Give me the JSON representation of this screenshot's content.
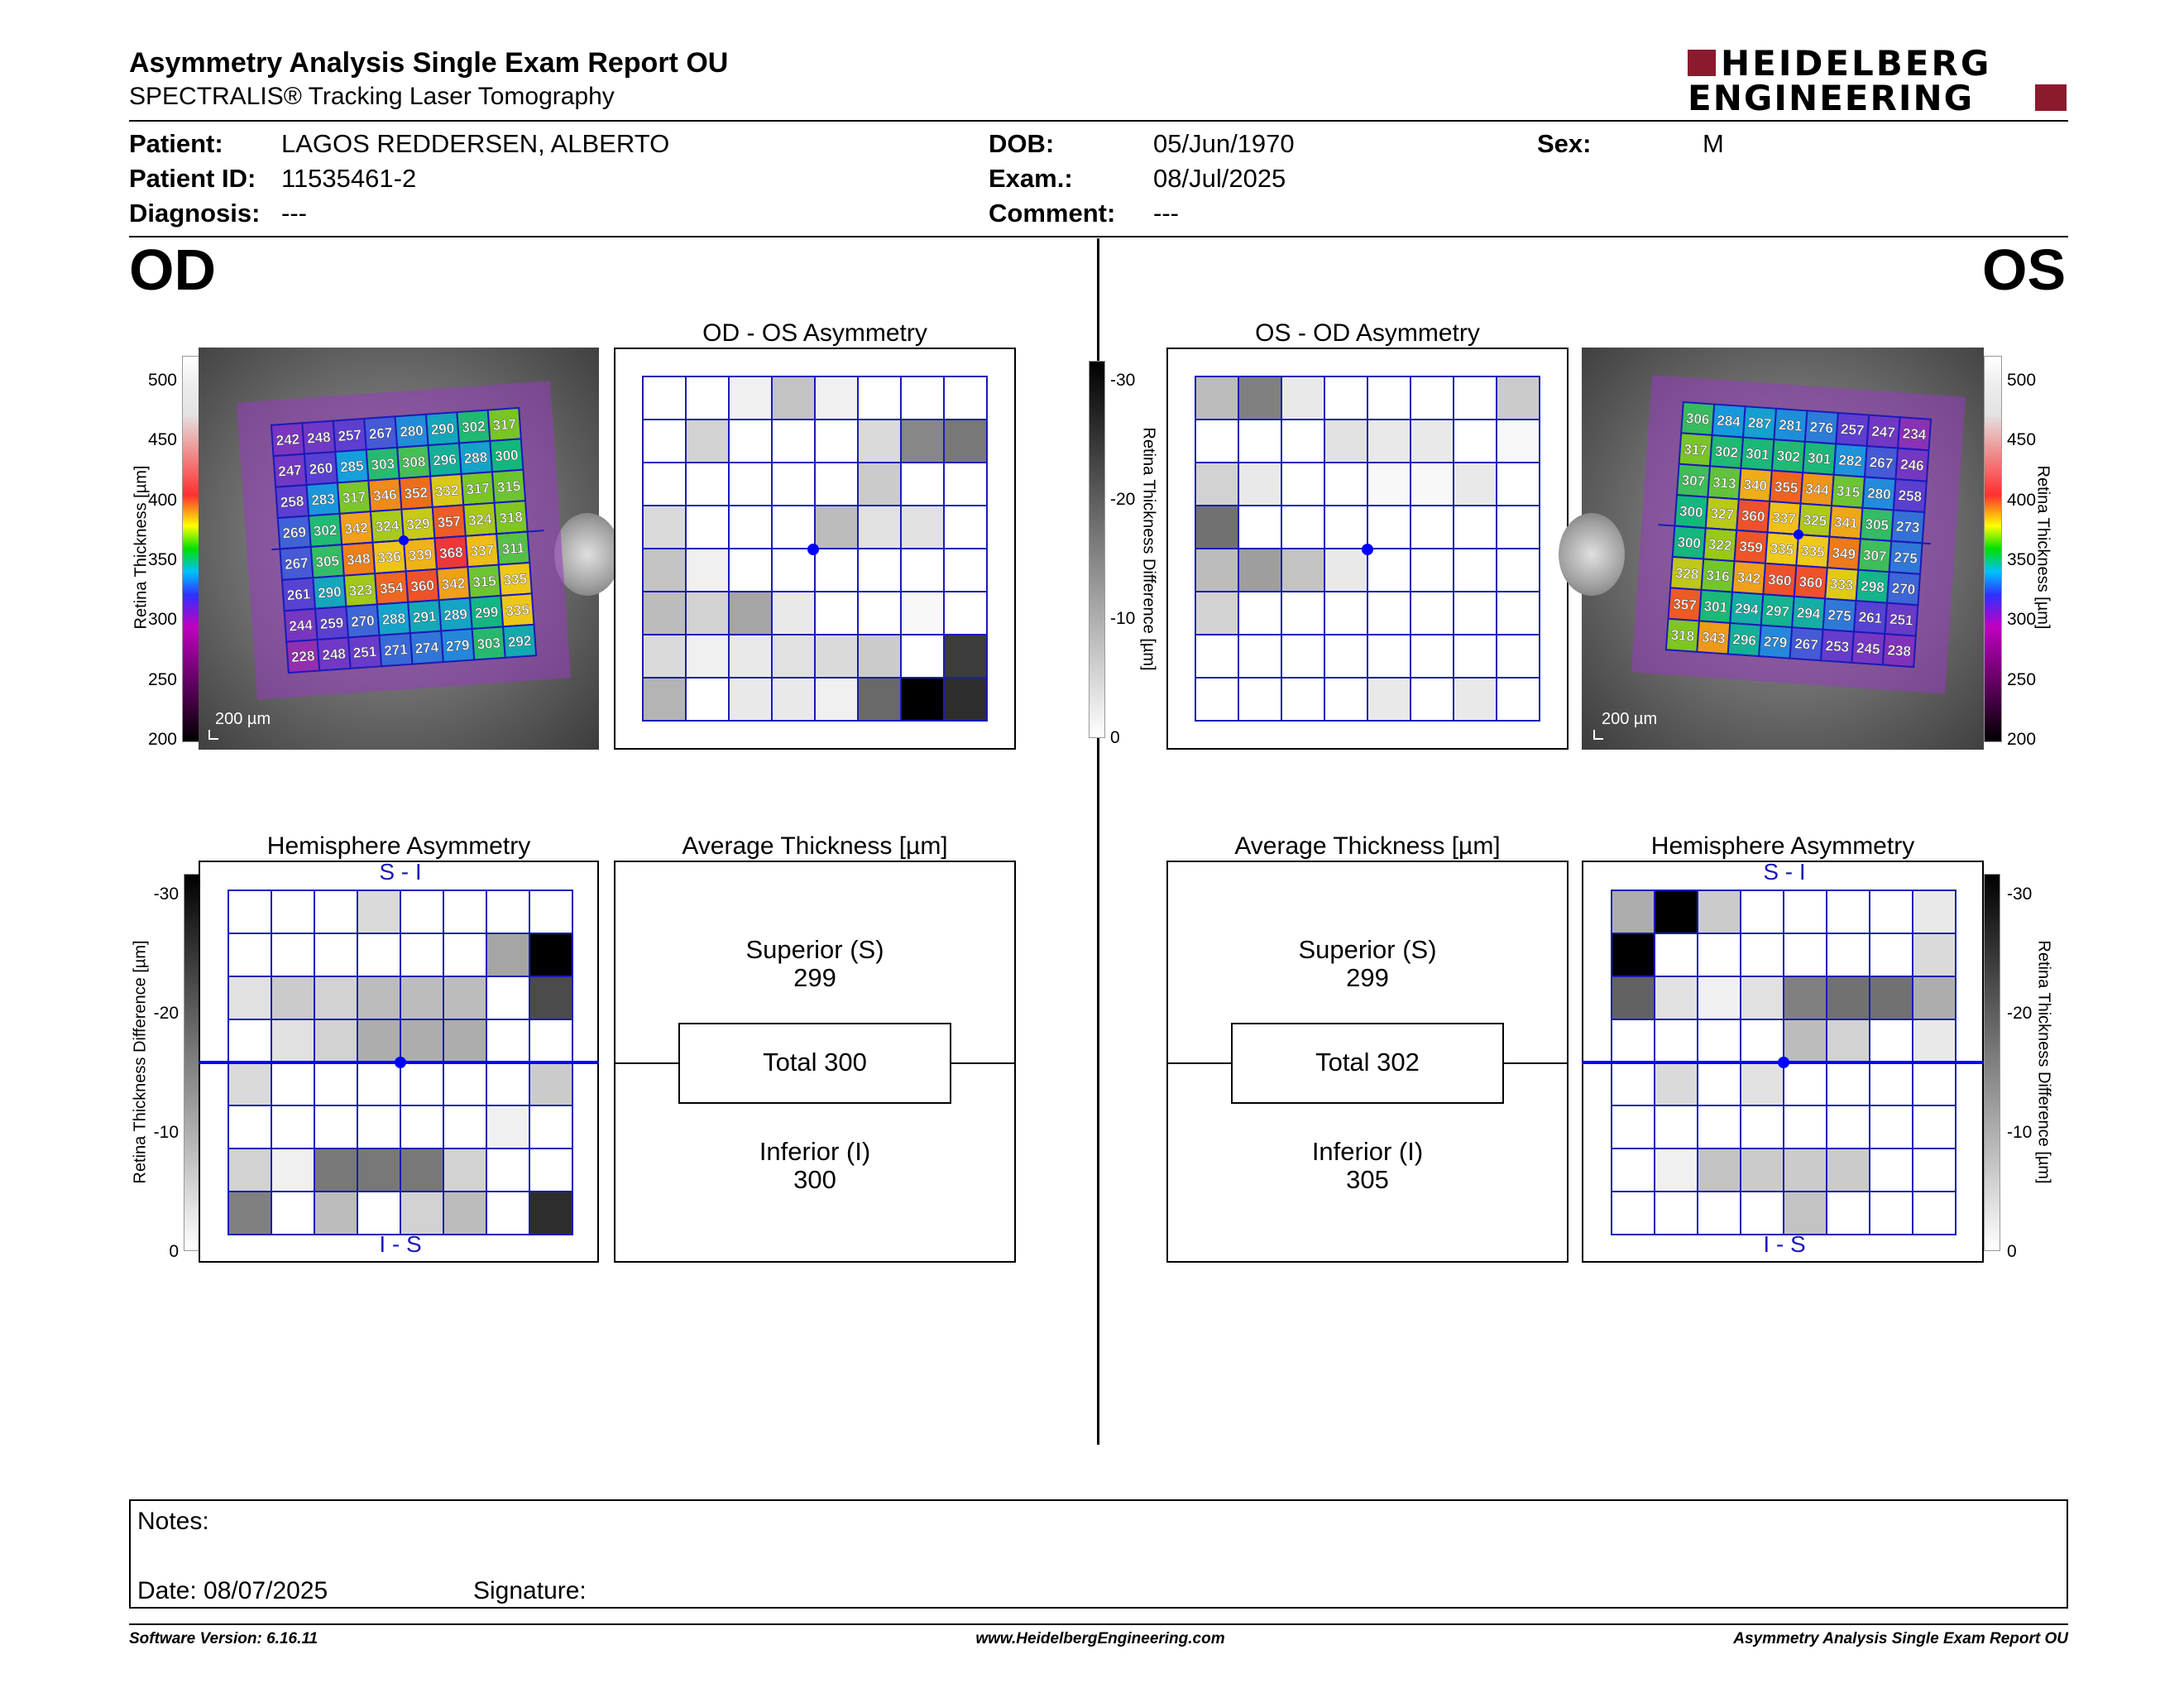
{
  "header": {
    "title": "Asymmetry Analysis Single Exam Report OU",
    "subtitle": "SPECTRALIS® Tracking Laser Tomography",
    "logo_line1": "HEIDELBERG",
    "logo_line2": "ENGINEERING"
  },
  "patient": {
    "patient_label": "Patient:",
    "patient_value": "LAGOS REDDERSEN, ALBERTO",
    "id_label": "Patient ID:",
    "id_value": "11535461-2",
    "diagnosis_label": "Diagnosis:",
    "diagnosis_value": "---",
    "dob_label": "DOB:",
    "dob_value": "05/Jun/1970",
    "exam_label": "Exam.:",
    "exam_value": "08/Jul/2025",
    "comment_label": "Comment:",
    "comment_value": "---",
    "sex_label": "Sex:",
    "sex_value": "M"
  },
  "eyes": {
    "od": "OD",
    "os": "OS"
  },
  "titles": {
    "od_asym": "OD - OS Asymmetry",
    "os_asym": "OS - OD Asymmetry",
    "hemi": "Hemisphere Asymmetry",
    "avg": "Average Thickness [µm]"
  },
  "scale": {
    "thickness_ticks": [
      "500",
      "450",
      "400",
      "350",
      "300",
      "250",
      "200"
    ],
    "diff_ticks": [
      "-30",
      "-20",
      "-10",
      "0"
    ],
    "thickness_label": "Retina Thickness [µm]",
    "diff_label": "Retina Thickness Difference [µm]",
    "scalebar": "200 µm"
  },
  "hemi_labels": {
    "top": "S - I",
    "bottom": "I - S"
  },
  "od": {
    "grid": [
      [
        "242",
        "248",
        "257",
        "267",
        "280",
        "290",
        "302",
        "317"
      ],
      [
        "247",
        "260",
        "285",
        "303",
        "308",
        "296",
        "288",
        "300"
      ],
      [
        "258",
        "283",
        "317",
        "346",
        "352",
        "332",
        "317",
        "315"
      ],
      [
        "269",
        "302",
        "342",
        "324",
        "329",
        "357",
        "324",
        "318"
      ],
      [
        "267",
        "305",
        "348",
        "336",
        "339",
        "368",
        "337",
        "311"
      ],
      [
        "261",
        "290",
        "323",
        "354",
        "360",
        "342",
        "315",
        "335"
      ],
      [
        "244",
        "259",
        "270",
        "288",
        "291",
        "289",
        "299",
        "335"
      ],
      [
        "228",
        "248",
        "251",
        "271",
        "274",
        "279",
        "303",
        "292"
      ]
    ],
    "asym": [
      [
        0,
        0,
        2,
        8,
        2,
        0,
        0,
        0
      ],
      [
        0,
        6,
        0,
        0,
        0,
        5,
        16,
        18
      ],
      [
        0,
        0,
        0,
        0,
        0,
        7,
        0,
        0
      ],
      [
        5,
        0,
        0,
        0,
        9,
        4,
        4,
        0
      ],
      [
        8,
        2,
        0,
        0,
        0,
        0,
        0,
        0
      ],
      [
        9,
        6,
        12,
        3,
        0,
        0,
        1,
        0
      ],
      [
        5,
        2,
        3,
        4,
        5,
        7,
        0,
        26
      ],
      [
        10,
        0,
        3,
        3,
        2,
        20,
        34,
        28
      ]
    ],
    "hemi": [
      [
        0,
        0,
        0,
        5,
        0,
        0,
        0,
        0
      ],
      [
        0,
        0,
        0,
        0,
        0,
        0,
        12,
        34
      ],
      [
        4,
        7,
        6,
        9,
        9,
        9,
        0,
        24
      ],
      [
        0,
        4,
        6,
        11,
        11,
        11,
        0,
        0
      ],
      [
        5,
        0,
        0,
        0,
        0,
        0,
        0,
        7
      ],
      [
        0,
        0,
        0,
        0,
        0,
        0,
        2,
        0
      ],
      [
        6,
        2,
        18,
        18,
        18,
        6,
        0,
        0
      ],
      [
        17,
        0,
        9,
        0,
        6,
        9,
        0,
        28
      ]
    ],
    "avg": {
      "superior_label": "Superior (S)",
      "superior": "299",
      "total": "Total 300",
      "inferior_label": "Inferior (I)",
      "inferior": "300"
    }
  },
  "os": {
    "grid": [
      [
        "306",
        "284",
        "287",
        "281",
        "276",
        "257",
        "247",
        "234"
      ],
      [
        "317",
        "302",
        "301",
        "302",
        "301",
        "282",
        "267",
        "246"
      ],
      [
        "307",
        "313",
        "340",
        "355",
        "344",
        "315",
        "280",
        "258"
      ],
      [
        "300",
        "327",
        "360",
        "337",
        "325",
        "341",
        "305",
        "273"
      ],
      [
        "300",
        "322",
        "359",
        "335",
        "335",
        "349",
        "307",
        "275"
      ],
      [
        "328",
        "316",
        "342",
        "360",
        "360",
        "333",
        "298",
        "270"
      ],
      [
        "357",
        "301",
        "294",
        "297",
        "294",
        "275",
        "261",
        "251"
      ],
      [
        "318",
        "343",
        "296",
        "279",
        "267",
        "253",
        "245",
        "238"
      ]
    ],
    "asym": [
      [
        9,
        17,
        3,
        0,
        0,
        0,
        0,
        7
      ],
      [
        0,
        0,
        0,
        4,
        3,
        3,
        0,
        1
      ],
      [
        6,
        3,
        0,
        0,
        1,
        1,
        3,
        0
      ],
      [
        19,
        0,
        0,
        0,
        0,
        0,
        0,
        0
      ],
      [
        9,
        13,
        8,
        3,
        0,
        0,
        0,
        0
      ],
      [
        6,
        0,
        0,
        0,
        0,
        0,
        0,
        0
      ],
      [
        0,
        0,
        0,
        0,
        0,
        0,
        0,
        0
      ],
      [
        0,
        0,
        0,
        0,
        3,
        0,
        3,
        0
      ]
    ],
    "hemi": [
      [
        11,
        34,
        7,
        0,
        0,
        0,
        0,
        3
      ],
      [
        34,
        0,
        0,
        0,
        0,
        0,
        0,
        5
      ],
      [
        21,
        4,
        2,
        4,
        17,
        19,
        19,
        11
      ],
      [
        0,
        0,
        0,
        0,
        9,
        6,
        0,
        3
      ],
      [
        0,
        5,
        0,
        4,
        0,
        0,
        0,
        0
      ],
      [
        0,
        0,
        0,
        0,
        0,
        0,
        0,
        0
      ],
      [
        0,
        2,
        8,
        7,
        7,
        7,
        0,
        0
      ],
      [
        0,
        0,
        0,
        0,
        8,
        0,
        0,
        0
      ]
    ],
    "avg": {
      "superior_label": "Superior (S)",
      "superior": "299",
      "total": "Total 302",
      "inferior_label": "Inferior (I)",
      "inferior": "305"
    }
  },
  "notes": {
    "notes_label": "Notes:",
    "date_label": "Date: 08/07/2025",
    "signature_label": "Signature:"
  },
  "footer": {
    "version": "Software Version: 6.16.11",
    "url": "www.HeidelbergEngineering.com",
    "report": "Asymmetry Analysis Single Exam Report OU"
  },
  "colors": {
    "grid_line": "#1a1ab8",
    "center_dot": "#0000ff",
    "logo_red": "#8c1a2e"
  }
}
